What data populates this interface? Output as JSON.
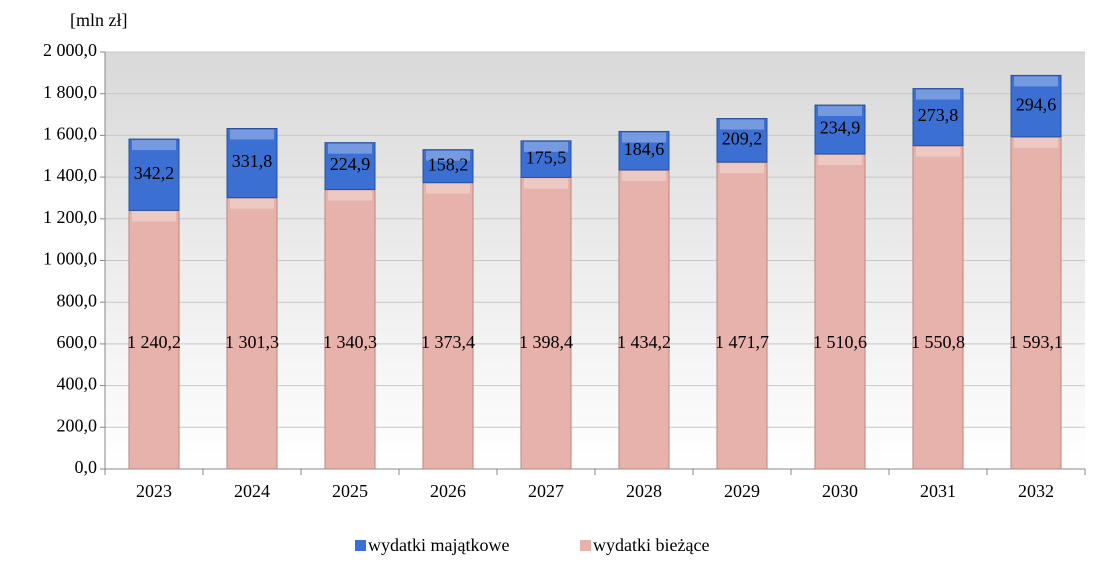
{
  "chart_data": {
    "type": "stacked-bar",
    "y_label": "[mln zł]",
    "categories": [
      "2023",
      "2024",
      "2025",
      "2026",
      "2027",
      "2028",
      "2029",
      "2030",
      "2031",
      "2032"
    ],
    "series": [
      {
        "name": "wydatki bieżące",
        "color": "#e6b2ab",
        "values": [
          1240.2,
          1301.3,
          1340.3,
          1373.4,
          1398.4,
          1434.2,
          1471.7,
          1510.6,
          1550.8,
          1593.1
        ],
        "value_labels": [
          "1 240,2",
          "1 301,3",
          "1 340,3",
          "1 373,4",
          "1 398,4",
          "1 434,2",
          "1 471,7",
          "1 510,6",
          "1 550,8",
          "1 593,1"
        ]
      },
      {
        "name": "wydatki majątkowe",
        "color": "#3b6fd1",
        "values": [
          342.2,
          331.8,
          224.9,
          158.2,
          175.5,
          184.6,
          209.2,
          234.9,
          273.8,
          294.6
        ],
        "value_labels": [
          "342,2",
          "331,8",
          "224,9",
          "158,2",
          "175,5",
          "184,6",
          "209,2",
          "234,9",
          "273,8",
          "294,6"
        ]
      }
    ],
    "ylim": [
      0,
      2000
    ],
    "yticks": [
      {
        "value": 0,
        "label": "0,0"
      },
      {
        "value": 200,
        "label": "200,0"
      },
      {
        "value": 400,
        "label": "400,0"
      },
      {
        "value": 600,
        "label": "600,0"
      },
      {
        "value": 800,
        "label": "800,0"
      },
      {
        "value": 1000,
        "label": "1 000,0"
      },
      {
        "value": 1200,
        "label": "1 200,0"
      },
      {
        "value": 1400,
        "label": "1 400,0"
      },
      {
        "value": 1600,
        "label": "1 600,0"
      },
      {
        "value": 1800,
        "label": "1 800,0"
      },
      {
        "value": 2000,
        "label": "2 000,0"
      }
    ],
    "grid": true,
    "legend": "bottom"
  }
}
